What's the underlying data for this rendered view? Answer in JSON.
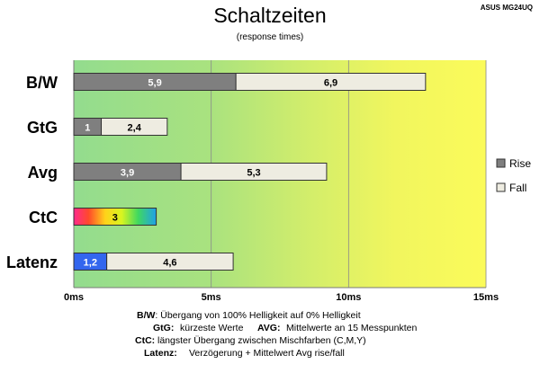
{
  "title": "Schaltzeiten",
  "subtitle": "(response times)",
  "model": "ASUS MG24UQ",
  "chart_data": {
    "type": "bar",
    "orientation": "horizontal",
    "stacked": true,
    "categories": [
      "B/W",
      "GtG",
      "Avg",
      "CtC",
      "Latenz"
    ],
    "series": [
      {
        "name": "Rise",
        "color": "#7f7f7f",
        "values": [
          5.9,
          1,
          3.9,
          null,
          null
        ],
        "labels": [
          "5,9",
          "1",
          "3,9",
          "",
          ""
        ]
      },
      {
        "name": "Fall",
        "color": "#eeece1",
        "values": [
          6.9,
          2.4,
          5.3,
          null,
          4.6
        ],
        "labels": [
          "6,9",
          "2,4",
          "5,3",
          "",
          "4,6"
        ]
      }
    ],
    "special_bars": [
      {
        "category": "CtC",
        "value": 3,
        "label": "3",
        "fill": "rainbow"
      },
      {
        "category": "Latenz",
        "value": 1.2,
        "label": "1,2",
        "fill": "#3366ee"
      }
    ],
    "xlim": [
      0,
      15
    ],
    "xticks": [
      0,
      5,
      10,
      15
    ],
    "xtick_labels": [
      "0ms",
      "5ms",
      "10ms",
      "15ms"
    ],
    "grid": true,
    "legend": "right",
    "background": "gradient green to yellow"
  },
  "footer": {
    "line1": {
      "key": "B/W",
      "text": ":  Übergang von 100% Helligkeit auf 0% Helligkeit"
    },
    "line2": {
      "key": "GtG:",
      "text": "kürzeste  Werte",
      "key2": "AVG:",
      "text2": "Mittelwerte  an 15 Messpunkten"
    },
    "line3": {
      "key": "CtC:",
      "text": "längster Übergang  zwischen Mischfarben  (C,M,Y)"
    },
    "line4": {
      "key": "Latenz:",
      "text": "Verzögerung   + Mittelwert  Avg rise/fall"
    }
  }
}
